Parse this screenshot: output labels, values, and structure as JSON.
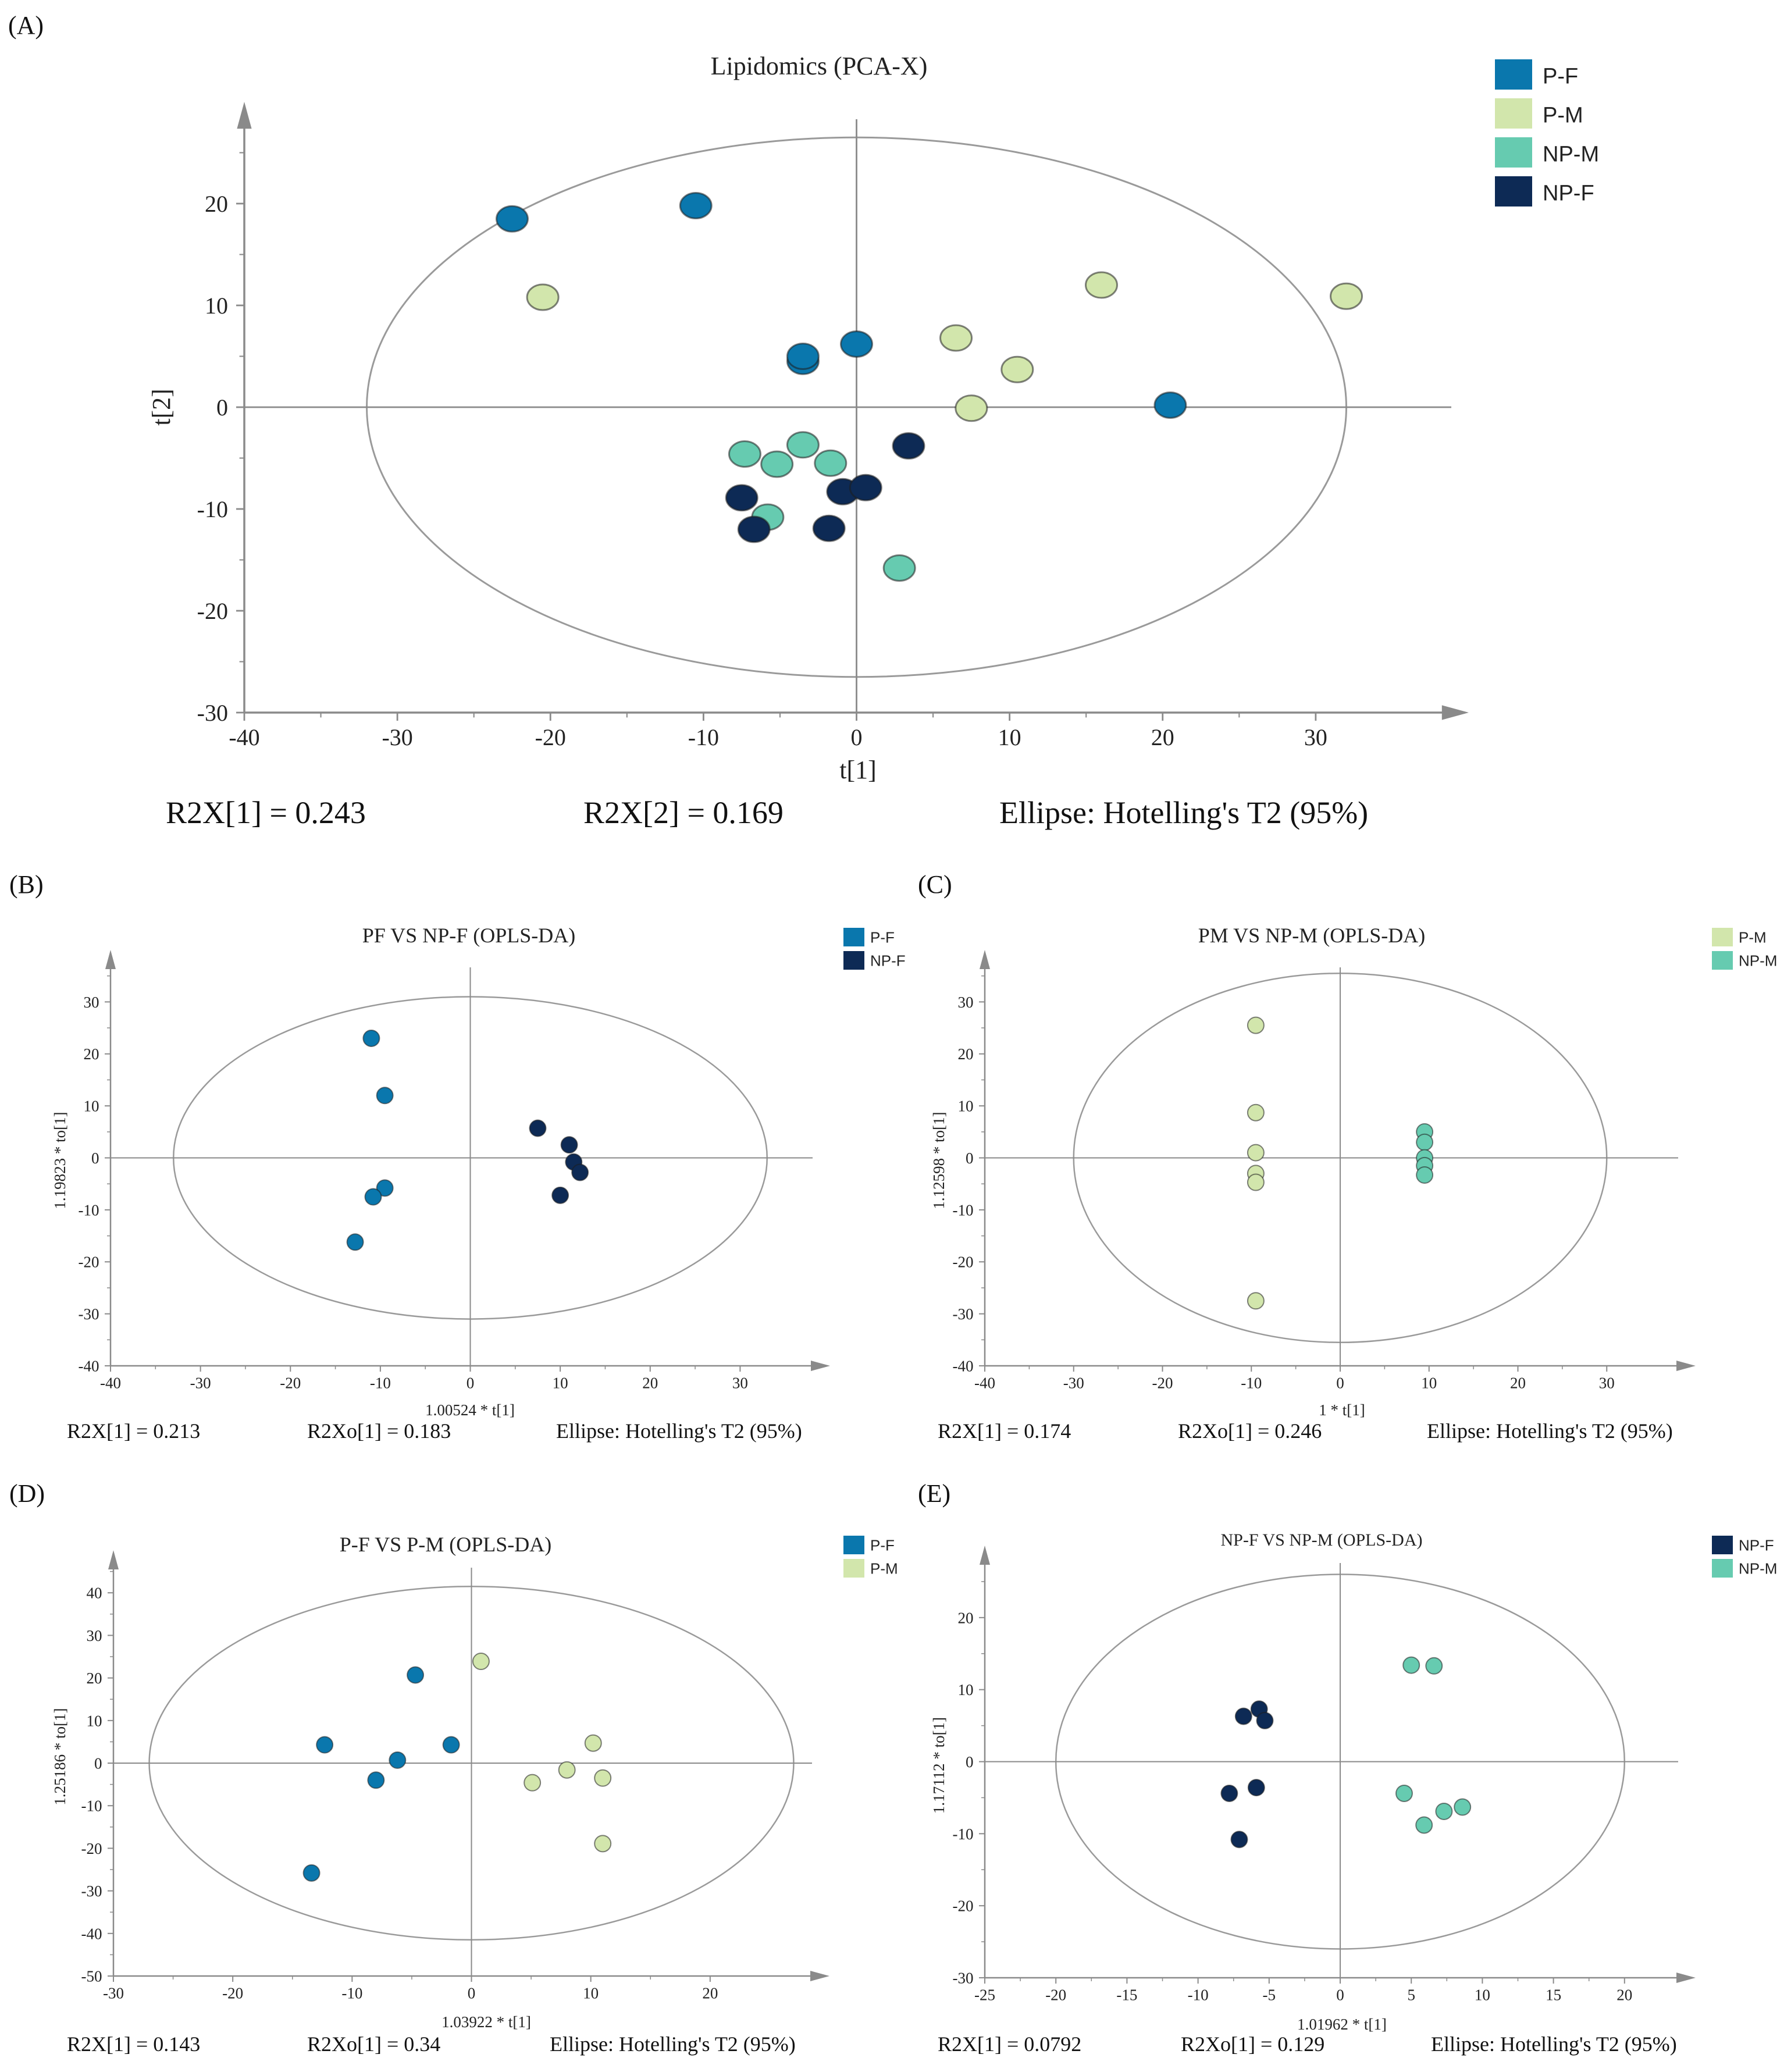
{
  "colors": {
    "P-F": "#0a77ad",
    "P-M": "#d2e6ac",
    "NP-M": "#66cbb0",
    "NP-F": "#0d2a55",
    "axis": "#8a8a8a",
    "ellipse": "#9a9a9a"
  },
  "chart_data": [
    {
      "panel_label": "(A)",
      "type": "scatter",
      "title": "Lipidomics (PCA-X)",
      "xlabel": "t[1]",
      "ylabel": "t[2]",
      "xlim": [
        -40,
        40
      ],
      "ylim": [
        -30,
        30
      ],
      "xticks": [
        -40,
        -30,
        -20,
        -10,
        0,
        10,
        20,
        30
      ],
      "yticks": [
        -30,
        -20,
        -10,
        0,
        10,
        20
      ],
      "ellipse": {
        "rx": 32,
        "ry": 26.5
      },
      "legend": [
        "P-F",
        "P-M",
        "NP-M",
        "NP-F"
      ],
      "footer": [
        "R2X[1] = 0.243",
        "R2X[2] = 0.169",
        "Ellipse: Hotelling's T2 (95%)"
      ],
      "series": [
        {
          "name": "P-F",
          "points": [
            [
              -22.5,
              18.5
            ],
            [
              -10.5,
              19.8
            ],
            [
              -3.5,
              4.5
            ],
            [
              -3.5,
              5
            ],
            [
              0,
              6.2
            ],
            [
              20.5,
              0.2
            ]
          ]
        },
        {
          "name": "P-M",
          "points": [
            [
              -20.5,
              10.8
            ],
            [
              6.5,
              6.8
            ],
            [
              10.5,
              3.7
            ],
            [
              7.5,
              -0.1
            ],
            [
              16,
              12
            ],
            [
              32,
              10.9
            ]
          ]
        },
        {
          "name": "NP-M",
          "points": [
            [
              -7.3,
              -4.6
            ],
            [
              -5.2,
              -5.6
            ],
            [
              -3.5,
              -3.7
            ],
            [
              -1.7,
              -5.5
            ],
            [
              -5.8,
              -10.8
            ],
            [
              2.8,
              -15.8
            ]
          ]
        },
        {
          "name": "NP-F",
          "points": [
            [
              -7.5,
              -8.9
            ],
            [
              -6.7,
              -12
            ],
            [
              -0.9,
              -8.3
            ],
            [
              0.6,
              -7.9
            ],
            [
              3.4,
              -3.8
            ],
            [
              -1.8,
              -11.9
            ]
          ]
        }
      ]
    },
    {
      "panel_label": "(B)",
      "type": "scatter",
      "title": "PF VS NP-F (OPLS-DA)",
      "xlabel": "1.00524 * t[1]",
      "ylabel": "1.19823 * to[1]",
      "xlim": [
        -40,
        40
      ],
      "ylim": [
        -40,
        40
      ],
      "xticks": [
        -40,
        -30,
        -20,
        -10,
        0,
        10,
        20,
        30
      ],
      "yticks": [
        -40,
        -30,
        -20,
        -10,
        0,
        10,
        20,
        30
      ],
      "ellipse": {
        "rx": 33,
        "ry": 31
      },
      "legend": [
        "P-F",
        "NP-F"
      ],
      "footer": [
        "R2X[1] = 0.213",
        "R2Xo[1] = 0.183",
        "Ellipse: Hotelling's T2 (95%)"
      ],
      "series": [
        {
          "name": "P-F",
          "points": [
            [
              -11,
              23
            ],
            [
              -9.5,
              12
            ],
            [
              -9.5,
              -5.8
            ],
            [
              -10.8,
              -7.5
            ],
            [
              -12.8,
              -16.2
            ]
          ]
        },
        {
          "name": "NP-F",
          "points": [
            [
              7.5,
              5.7
            ],
            [
              11,
              2.5
            ],
            [
              11.5,
              -0.8
            ],
            [
              12.2,
              -2.8
            ],
            [
              10,
              -7.2
            ]
          ]
        }
      ]
    },
    {
      "panel_label": "(C)",
      "type": "scatter",
      "title": "PM VS NP-M (OPLS-DA)",
      "xlabel": "1 * t[1]",
      "ylabel": "1.12598 * to[1]",
      "xlim": [
        -40,
        40
      ],
      "ylim": [
        -40,
        40
      ],
      "xticks": [
        -40,
        -30,
        -20,
        -10,
        0,
        10,
        20,
        30
      ],
      "yticks": [
        -40,
        -30,
        -20,
        -10,
        0,
        10,
        20,
        30
      ],
      "ellipse": {
        "rx": 30,
        "ry": 35.5
      },
      "legend": [
        "P-M",
        "NP-M"
      ],
      "footer": [
        "R2X[1] = 0.174",
        "R2Xo[1] = 0.246",
        "Ellipse: Hotelling's T2 (95%)"
      ],
      "series": [
        {
          "name": "P-M",
          "points": [
            [
              -9.5,
              25.5
            ],
            [
              -9.5,
              8.7
            ],
            [
              -9.5,
              1
            ],
            [
              -9.5,
              -3
            ],
            [
              -9.5,
              -4.7
            ],
            [
              -9.5,
              -27.5
            ]
          ]
        },
        {
          "name": "NP-M",
          "points": [
            [
              9.5,
              5
            ],
            [
              9.5,
              3
            ],
            [
              9.5,
              0
            ],
            [
              9.5,
              -1.5
            ],
            [
              9.5,
              -3.3
            ]
          ]
        }
      ]
    },
    {
      "panel_label": "(D)",
      "type": "scatter",
      "title": "P-F VS P-M (OPLS-DA)",
      "xlabel": "1.03922 * t[1]",
      "ylabel": "1.25186 * to[1]",
      "xlim": [
        -30,
        30
      ],
      "ylim": [
        -50,
        50
      ],
      "xticks": [
        -30,
        -20,
        -10,
        0,
        10,
        20
      ],
      "yticks": [
        -50,
        -40,
        -30,
        -20,
        -10,
        0,
        10,
        20,
        30,
        40
      ],
      "ellipse": {
        "rx": 27,
        "ry": 41.5
      },
      "legend": [
        "P-F",
        "P-M"
      ],
      "footer": [
        "R2X[1] = 0.143",
        "R2Xo[1] = 0.34",
        "Ellipse: Hotelling's T2 (95%)"
      ],
      "series": [
        {
          "name": "P-F",
          "points": [
            [
              -12.3,
              4.3
            ],
            [
              -4.7,
              20.7
            ],
            [
              -6.2,
              0.7
            ],
            [
              -8,
              -4
            ],
            [
              -1.7,
              4.3
            ],
            [
              -13.4,
              -25.8
            ]
          ]
        },
        {
          "name": "P-M",
          "points": [
            [
              0.8,
              23.9
            ],
            [
              10.2,
              4.7
            ],
            [
              8,
              -1.6
            ],
            [
              5.1,
              -4.6
            ],
            [
              11,
              -3.5
            ],
            [
              11,
              -18.9
            ]
          ]
        }
      ]
    },
    {
      "panel_label": "(E)",
      "type": "scatter",
      "title": "NP-F VS NP-M (OPLS-DA)",
      "xlabel": "1.01962 * t[1]",
      "ylabel": "1.17112 * to[1]",
      "xlim": [
        -25,
        25
      ],
      "ylim": [
        -30,
        30
      ],
      "xticks": [
        -25,
        -20,
        -15,
        -10,
        -5,
        0,
        5,
        10,
        15,
        20
      ],
      "yticks": [
        -30,
        -20,
        -10,
        0,
        10,
        20
      ],
      "ellipse": {
        "rx": 20,
        "ry": 26
      },
      "legend": [
        "NP-F",
        "NP-M"
      ],
      "footer": [
        "R2X[1] = 0.0792",
        "R2Xo[1] = 0.129",
        "Ellipse: Hotelling's T2 (95%)"
      ],
      "series": [
        {
          "name": "NP-F",
          "points": [
            [
              -6.8,
              6.3
            ],
            [
              -5.7,
              7.3
            ],
            [
              -5.3,
              5.7
            ],
            [
              -7.8,
              -4.4
            ],
            [
              -5.9,
              -3.6
            ],
            [
              -7.1,
              -10.8
            ]
          ]
        },
        {
          "name": "NP-M",
          "points": [
            [
              5,
              13.4
            ],
            [
              6.6,
              13.3
            ],
            [
              4.5,
              -4.4
            ],
            [
              7.3,
              -6.9
            ],
            [
              8.6,
              -6.3
            ],
            [
              5.9,
              -8.8
            ]
          ]
        }
      ]
    }
  ]
}
